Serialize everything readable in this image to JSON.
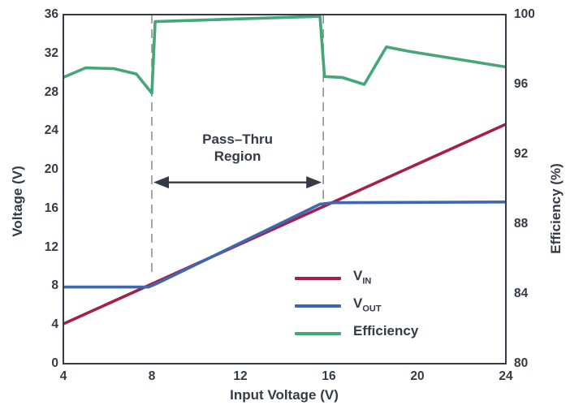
{
  "chart_data": {
    "type": "line",
    "title": "",
    "xlabel": "Input Voltage (V)",
    "ylabel_left": "Voltage (V)",
    "ylabel_right": "Efficiency (%)",
    "x_range": [
      4,
      24
    ],
    "y_left_range": [
      0,
      36
    ],
    "y_right_range": [
      80,
      100
    ],
    "x_ticks": [
      4,
      8,
      12,
      16,
      20,
      24
    ],
    "y_left_ticks": [
      0,
      4,
      8,
      12,
      16,
      20,
      24,
      28,
      32,
      36
    ],
    "y_right_ticks": [
      80,
      84,
      88,
      92,
      96,
      100
    ],
    "grid": false,
    "frame_color": "#343b47",
    "text_color": "#343b47",
    "series": [
      {
        "name": "V_IN",
        "axis": "left",
        "color": "#a42049",
        "points": [
          [
            4,
            4.1
          ],
          [
            24,
            24.7
          ]
        ]
      },
      {
        "name": "V_OUT",
        "axis": "left",
        "color": "#3d68b0",
        "points": [
          [
            4,
            7.9
          ],
          [
            7.85,
            7.9
          ],
          [
            8.3,
            8.35
          ],
          [
            12,
            12.45
          ],
          [
            15.6,
            16.45
          ],
          [
            16.2,
            16.6
          ],
          [
            24,
            16.68
          ]
        ]
      },
      {
        "name": "Efficiency",
        "axis": "right",
        "color": "#45a678",
        "points": [
          [
            4,
            96.4
          ],
          [
            5,
            96.95
          ],
          [
            6.3,
            96.9
          ],
          [
            7.3,
            96.6
          ],
          [
            8,
            95.5
          ],
          [
            8.15,
            99.6
          ],
          [
            15.6,
            99.9
          ],
          [
            15.8,
            96.45
          ],
          [
            16.6,
            96.4
          ],
          [
            17.6,
            96.0
          ],
          [
            18.6,
            98.15
          ],
          [
            19.6,
            97.9
          ],
          [
            24,
            97.0
          ]
        ]
      }
    ],
    "annotation": {
      "line1": "Pass–Thru",
      "line2": "Region",
      "x_start": 8,
      "x_end": 15.75,
      "arrow_y": 18.7,
      "dash1_bottom": 9.2,
      "dash2_bottom": 17.0,
      "dash_color": "#8c9097"
    },
    "legend": {
      "position": "inside-bottom-center",
      "items": [
        {
          "base": "V",
          "sub": "IN"
        },
        {
          "base": "V",
          "sub": "OUT"
        },
        {
          "base": "Efficiency",
          "sub": ""
        }
      ]
    }
  }
}
